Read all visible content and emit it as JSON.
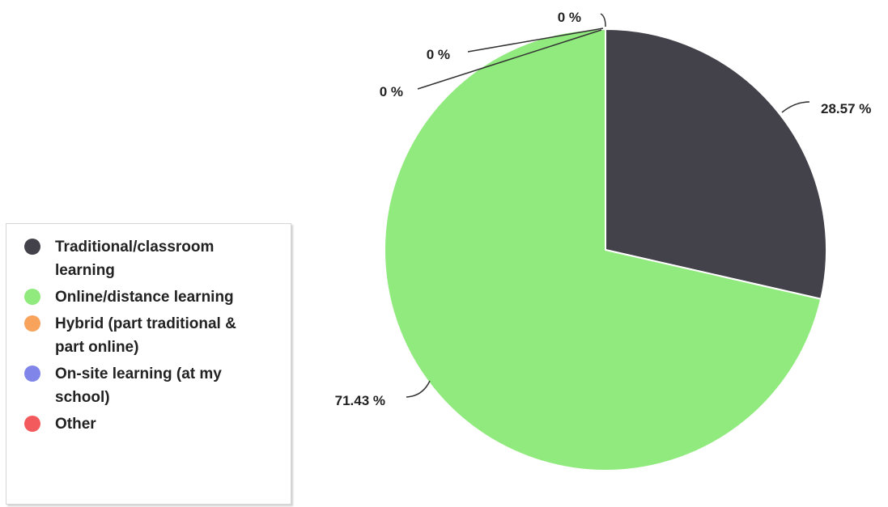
{
  "chart_data": {
    "type": "pie",
    "categories": [
      "Traditional/classroom learning",
      "Online/distance learning",
      "Hybrid (part traditional &\npart online)",
      "On-site learning (at my school)",
      "Other"
    ],
    "values": [
      28.57,
      71.43,
      0,
      0,
      0
    ],
    "value_labels": [
      "28.57 %",
      "71.43 %",
      "0 %",
      "0 %",
      "0 %"
    ],
    "colors": [
      "#434149",
      "#91ea7e",
      "#f7a35b",
      "#8085e9",
      "#f25a5d"
    ],
    "legend_placement": "left"
  }
}
